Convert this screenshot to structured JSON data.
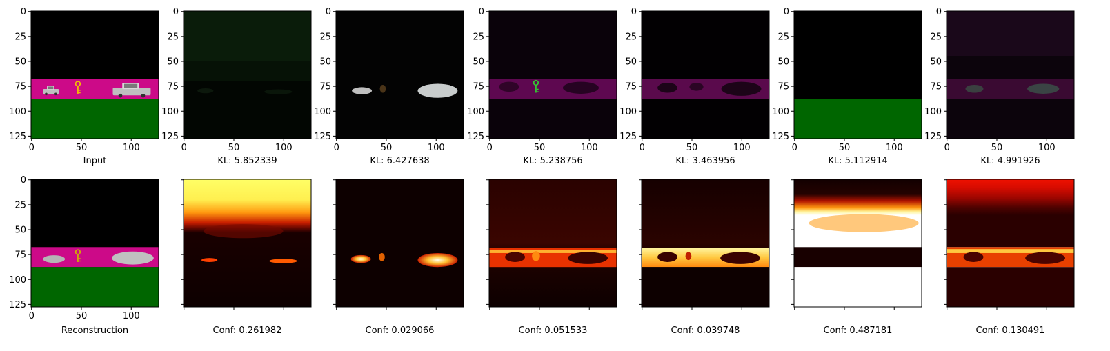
{
  "chart_data": {
    "type": "heatmap",
    "axis_range": [
      0,
      128
    ],
    "tick_values": [
      0,
      50,
      100
    ],
    "tick_labels_y": [
      "0",
      "25",
      "50",
      "75",
      "100",
      "125"
    ],
    "top_row": [
      {
        "panel": "input",
        "caption": "Input"
      },
      {
        "panel": "slot1",
        "caption": "KL: 5.852339"
      },
      {
        "panel": "slot2",
        "caption": "KL: 6.427638"
      },
      {
        "panel": "slot3",
        "caption": "KL: 5.238756"
      },
      {
        "panel": "slot4",
        "caption": "KL: 3.463956"
      },
      {
        "panel": "slot5",
        "caption": "KL: 5.112914"
      },
      {
        "panel": "slot6",
        "caption": "KL: 4.991926"
      }
    ],
    "bottom_row": [
      {
        "panel": "reconstruction",
        "caption": "Reconstruction"
      },
      {
        "panel": "mask1",
        "caption": "Conf: 0.261982"
      },
      {
        "panel": "mask2",
        "caption": "Conf: 0.029066"
      },
      {
        "panel": "mask3",
        "caption": "Conf: 0.051533"
      },
      {
        "panel": "mask4",
        "caption": "Conf: 0.039748"
      },
      {
        "panel": "mask5",
        "caption": "Conf: 0.487181"
      },
      {
        "panel": "mask6",
        "caption": "Conf: 0.130491"
      }
    ],
    "colormap": "hot",
    "colors": {
      "background": "#000000",
      "road": "#cc0a88",
      "grass": "#006600",
      "key": "#f2c200",
      "car": "#bfbfbf"
    }
  }
}
